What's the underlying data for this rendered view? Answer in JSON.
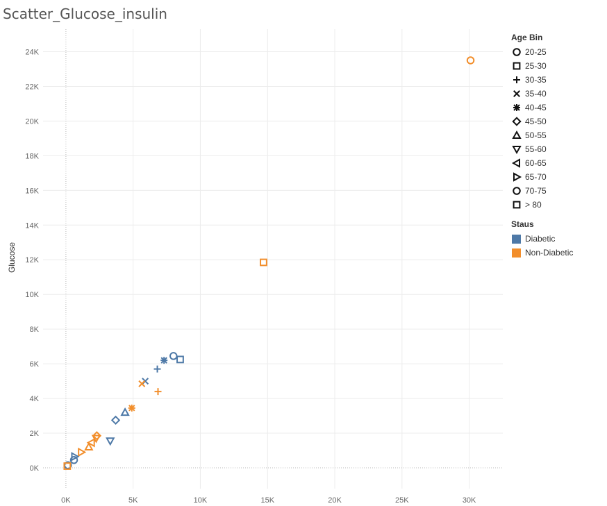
{
  "title": "Scatter_Glucose_insulin",
  "chart_data": {
    "type": "scatter",
    "title": "Scatter_Glucose_insulin",
    "xlabel": "",
    "ylabel": "Glucose",
    "xlim": [
      -1700,
      32500
    ],
    "ylim": [
      -1200,
      25300
    ],
    "xticks": [
      0,
      5000,
      10000,
      15000,
      20000,
      25000,
      30000
    ],
    "xtick_labels": [
      "0K",
      "5K",
      "10K",
      "15K",
      "20K",
      "25K",
      "30K"
    ],
    "yticks": [
      0,
      2000,
      4000,
      6000,
      8000,
      10000,
      12000,
      14000,
      16000,
      18000,
      20000,
      22000,
      24000
    ],
    "ytick_labels": [
      "0K",
      "2K",
      "4K",
      "6K",
      "8K",
      "10K",
      "12K",
      "14K",
      "16K",
      "18K",
      "20K",
      "22K",
      "24K"
    ],
    "grid": true,
    "zero_lines": true,
    "legend_position": "right",
    "shape_legend_title": "Age Bin",
    "color_legend_title": "Staus",
    "age_bins": [
      {
        "label": "20-25",
        "shape": "circle"
      },
      {
        "label": "25-30",
        "shape": "square"
      },
      {
        "label": "30-35",
        "shape": "plus"
      },
      {
        "label": "35-40",
        "shape": "cross"
      },
      {
        "label": "40-45",
        "shape": "asterisk"
      },
      {
        "label": "45-50",
        "shape": "diamond"
      },
      {
        "label": "50-55",
        "shape": "triangle-up"
      },
      {
        "label": "55-60",
        "shape": "triangle-down"
      },
      {
        "label": "60-65",
        "shape": "triangle-left"
      },
      {
        "label": "65-70",
        "shape": "triangle-right"
      },
      {
        "label": "70-75",
        "shape": "circle"
      },
      {
        "label": "> 80",
        "shape": "square"
      }
    ],
    "statuses": [
      {
        "label": "Diabetic",
        "color": "#4e79a7"
      },
      {
        "label": "Non-Diabetic",
        "color": "#f28e2b"
      }
    ],
    "points": [
      {
        "x": 30100,
        "y": 23500,
        "age_bin": "20-25",
        "status": "Non-Diabetic"
      },
      {
        "x": 14700,
        "y": 11850,
        "age_bin": "25-30",
        "status": "Non-Diabetic"
      },
      {
        "x": 8000,
        "y": 6450,
        "age_bin": "20-25",
        "status": "Diabetic"
      },
      {
        "x": 8500,
        "y": 6250,
        "age_bin": "25-30",
        "status": "Diabetic"
      },
      {
        "x": 7300,
        "y": 6200,
        "age_bin": "40-45",
        "status": "Diabetic"
      },
      {
        "x": 6800,
        "y": 5700,
        "age_bin": "30-35",
        "status": "Diabetic"
      },
      {
        "x": 5900,
        "y": 5000,
        "age_bin": "35-40",
        "status": "Diabetic"
      },
      {
        "x": 5650,
        "y": 4850,
        "age_bin": "35-40",
        "status": "Non-Diabetic"
      },
      {
        "x": 6850,
        "y": 4400,
        "age_bin": "30-35",
        "status": "Non-Diabetic"
      },
      {
        "x": 4900,
        "y": 3450,
        "age_bin": "40-45",
        "status": "Non-Diabetic"
      },
      {
        "x": 4400,
        "y": 3200,
        "age_bin": "50-55",
        "status": "Diabetic"
      },
      {
        "x": 3700,
        "y": 2750,
        "age_bin": "45-50",
        "status": "Diabetic"
      },
      {
        "x": 2300,
        "y": 1850,
        "age_bin": "45-50",
        "status": "Non-Diabetic"
      },
      {
        "x": 2250,
        "y": 1700,
        "age_bin": "55-60",
        "status": "Non-Diabetic"
      },
      {
        "x": 3300,
        "y": 1550,
        "age_bin": "55-60",
        "status": "Diabetic"
      },
      {
        "x": 1900,
        "y": 1450,
        "age_bin": "60-65",
        "status": "Non-Diabetic"
      },
      {
        "x": 1700,
        "y": 1200,
        "age_bin": "50-55",
        "status": "Non-Diabetic"
      },
      {
        "x": 1150,
        "y": 900,
        "age_bin": "65-70",
        "status": "Non-Diabetic"
      },
      {
        "x": 650,
        "y": 650,
        "age_bin": "65-70",
        "status": "Diabetic"
      },
      {
        "x": 600,
        "y": 450,
        "age_bin": "70-75",
        "status": "Diabetic"
      },
      {
        "x": 150,
        "y": 150,
        "age_bin": "20-25",
        "status": "Diabetic"
      },
      {
        "x": 100,
        "y": 100,
        "age_bin": "> 80",
        "status": "Non-Diabetic"
      }
    ]
  }
}
